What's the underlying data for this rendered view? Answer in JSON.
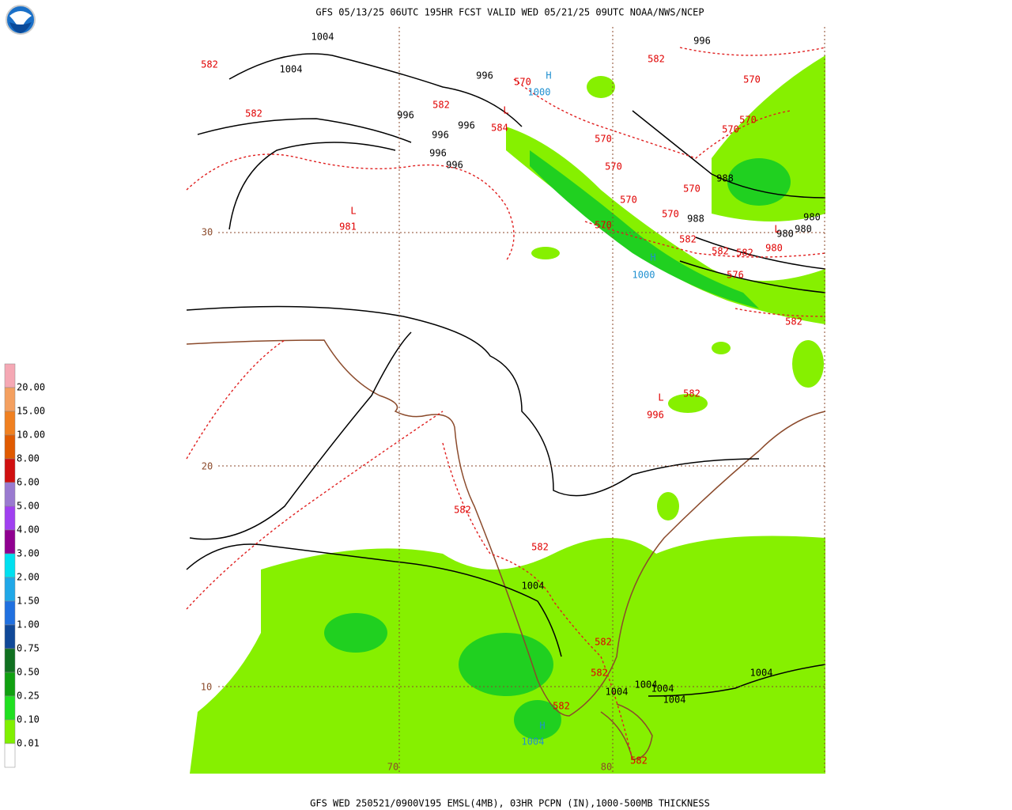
{
  "header": {
    "title": "GFS 05/13/25 06UTC 195HR FCST VALID WED 05/21/25 09UTC NOAA/NWS/NCEP"
  },
  "footer": {
    "caption": "GFS WED 250521/0900V195 EMSL(4MB), 03HR PCPN (IN),1000-500MB THICKNESS"
  },
  "legend": {
    "labels": [
      "20.00",
      "15.00",
      "10.00",
      "8.00",
      "6.00",
      "5.00",
      "4.00",
      "3.00",
      "2.00",
      "1.50",
      "1.00",
      "0.75",
      "0.50",
      "0.25",
      "0.10",
      "0.01"
    ],
    "colors": [
      "#f5a8b4",
      "#f4a060",
      "#f08020",
      "#e05a00",
      "#d01010",
      "#9a7ad0",
      "#a040f0",
      "#900090",
      "#00e0f0",
      "#20a8e8",
      "#2070e0",
      "#104898",
      "#107020",
      "#10a010",
      "#20e020",
      "#80f000",
      "#ffffff"
    ]
  },
  "map": {
    "lat_labels": [
      "30",
      "20",
      "10",
      "70",
      "80"
    ],
    "pressure_labels": [
      "1004",
      "1004",
      "996",
      "996",
      "996",
      "996",
      "996",
      "996",
      "996",
      "988",
      "988",
      "980",
      "980",
      "980",
      "1004",
      "1004",
      "1004",
      "1004",
      "1004",
      "1004"
    ],
    "thickness_labels": [
      "582",
      "582",
      "582",
      "570",
      "584",
      "582",
      "570",
      "570",
      "570",
      "570",
      "570",
      "570",
      "570",
      "570",
      "570",
      "582",
      "582",
      "582",
      "576",
      "582",
      "582",
      "582",
      "582",
      "582",
      "582",
      "582",
      "582",
      "981",
      "980",
      "996"
    ],
    "centers": [
      "H",
      "H",
      "H",
      "L",
      "L",
      "L",
      "L"
    ],
    "center_values": [
      "1000",
      "1000",
      "1004"
    ]
  }
}
